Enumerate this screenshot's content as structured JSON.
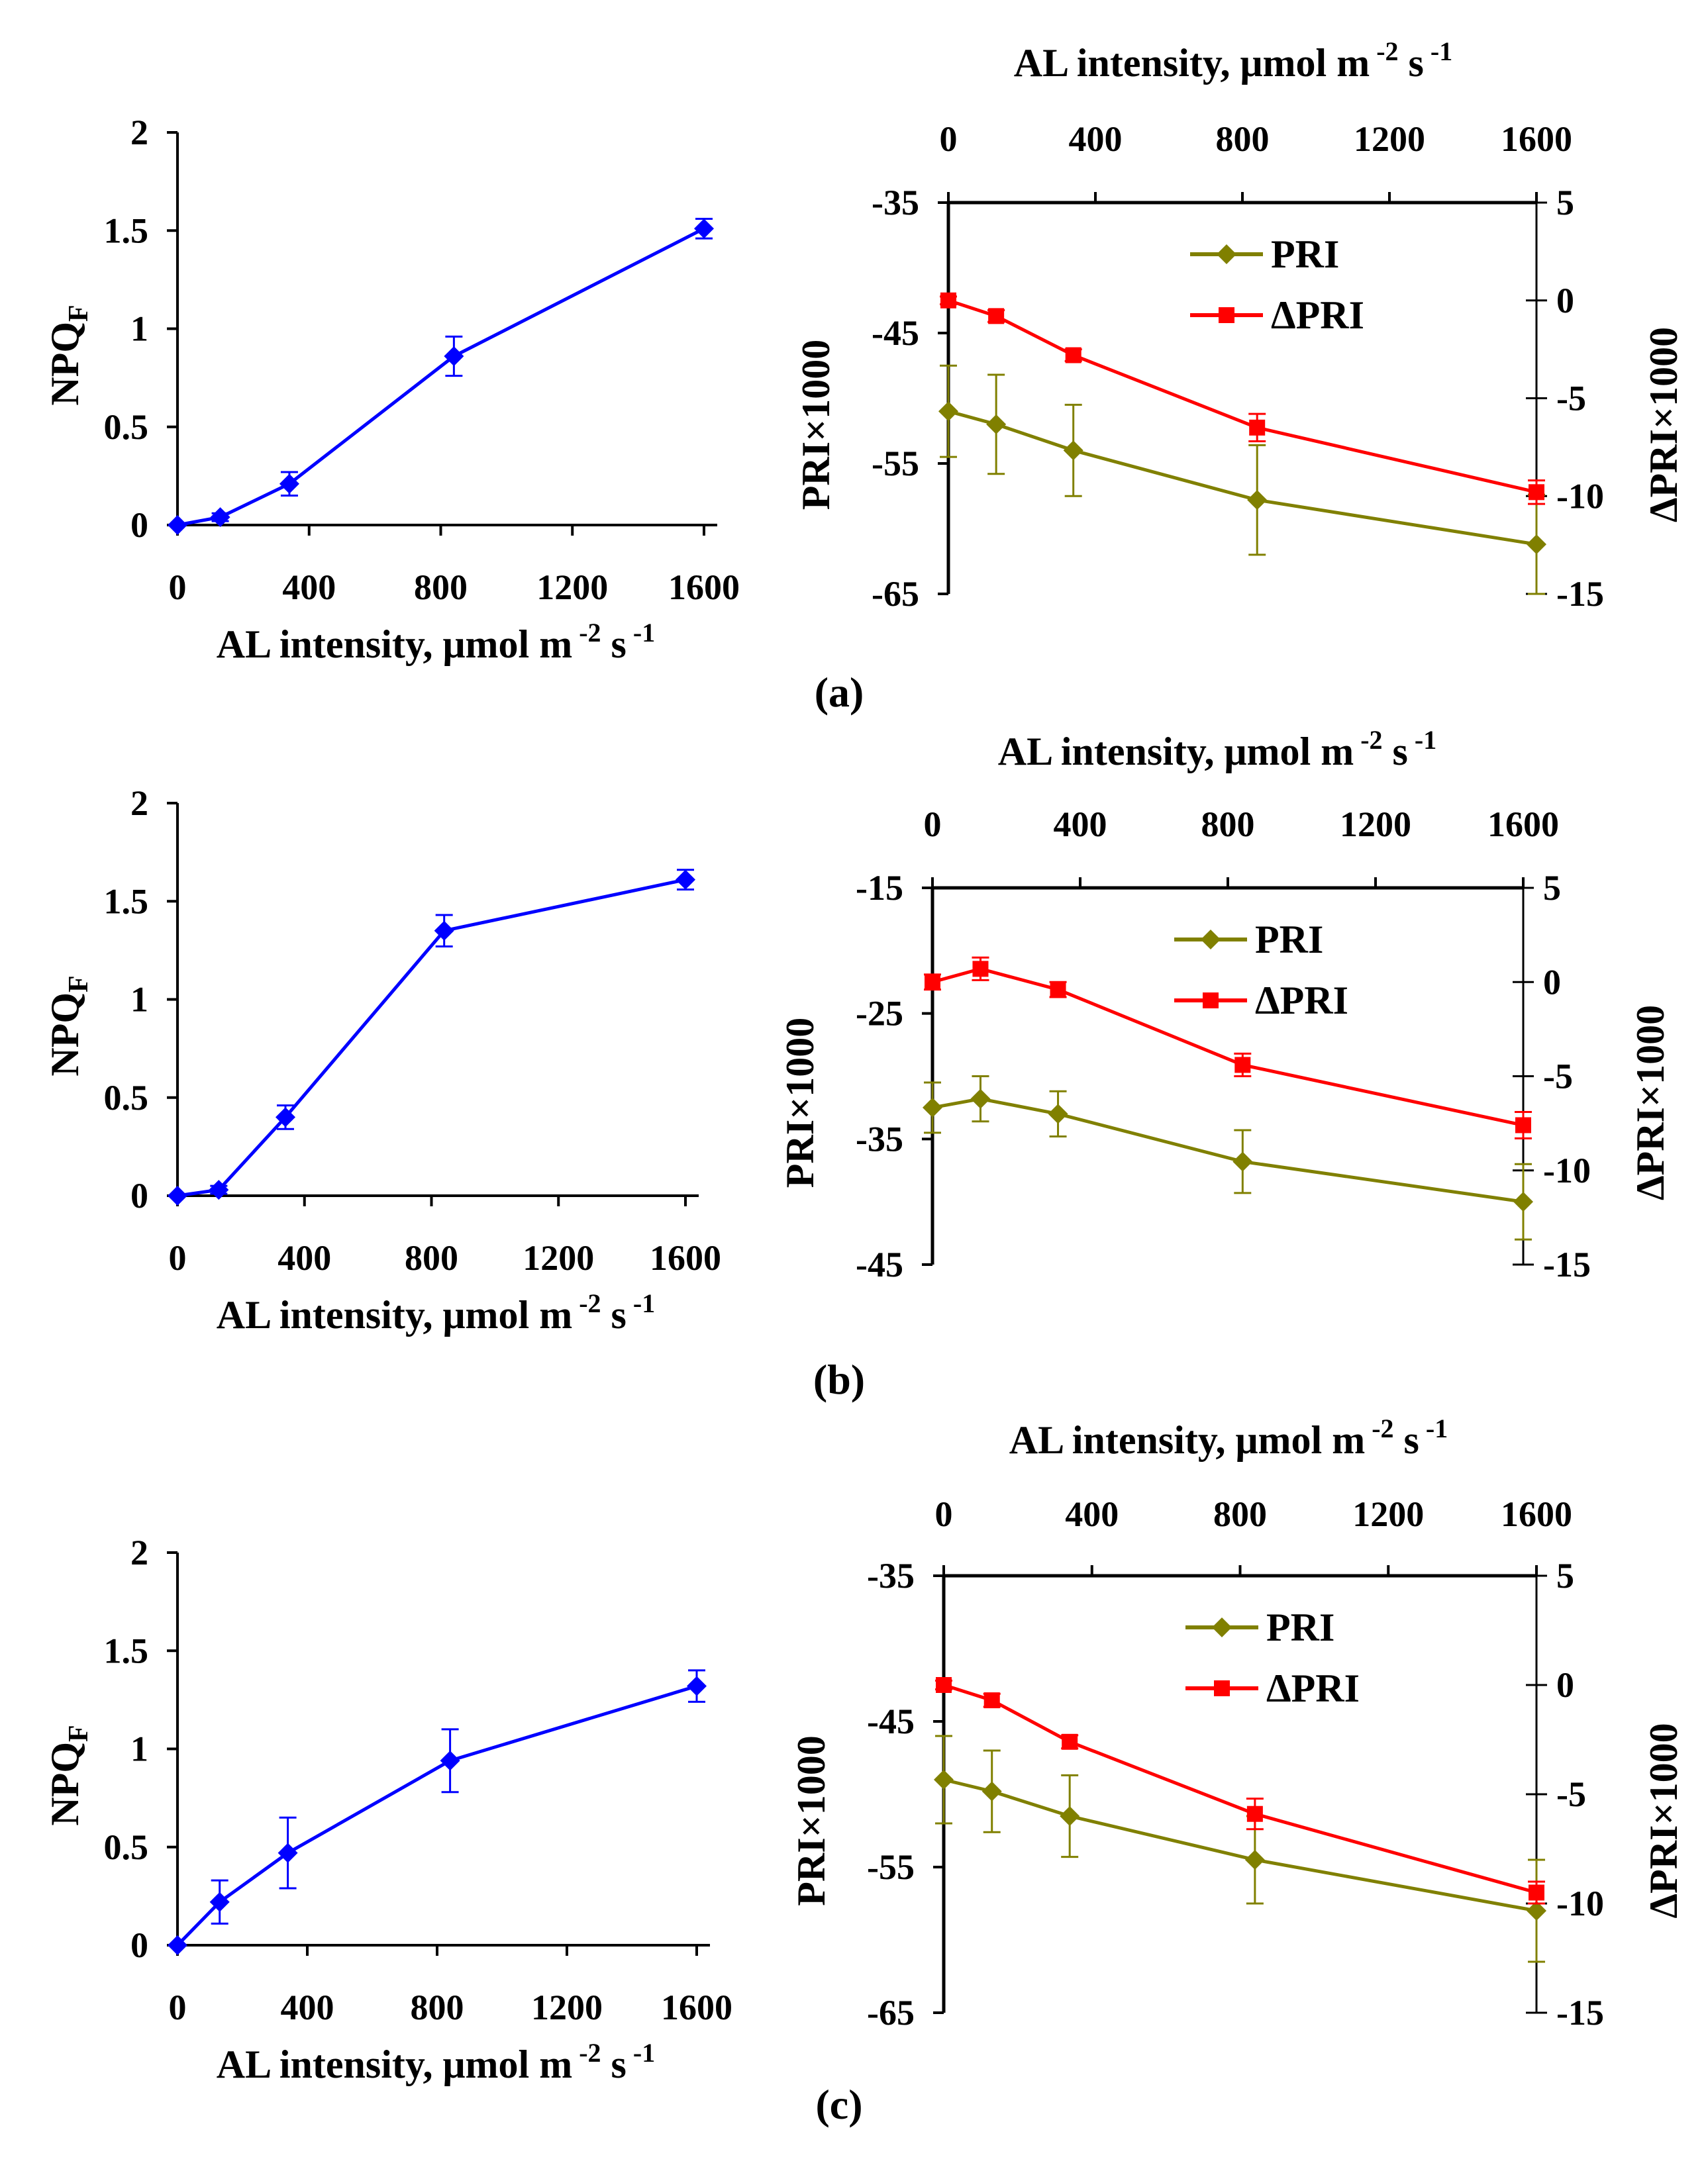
{
  "chart_data": [
    {
      "type": "line",
      "panel": "(a) left",
      "x_label": "AL intensity, μmol m⁻² s⁻¹",
      "y_label_main": "NPQ",
      "y_label_sub": "F",
      "x_ticks": [
        "0",
        "400",
        "800",
        "1200",
        "1600"
      ],
      "y_ticks": [
        "0",
        "0.5",
        "1",
        "1.5",
        "2"
      ],
      "xlim": [
        0,
        1600
      ],
      "ylim": [
        0,
        2
      ],
      "series": [
        {
          "color": "#0000ff",
          "marker": "diamond",
          "x": [
            0,
            130,
            340,
            840,
            1600
          ],
          "y": [
            0,
            0.04,
            0.21,
            0.86,
            1.51
          ],
          "err": [
            0,
            0.02,
            0.06,
            0.1,
            0.05
          ]
        }
      ]
    },
    {
      "type": "line",
      "panel": "(a) right",
      "panel_label": "(a)",
      "x_label": "AL intensity, μmol m⁻² s⁻¹",
      "y_label_left": "PRI×1000",
      "y_label_right": "ΔPRI×1000",
      "x_ticks": [
        "0",
        "400",
        "800",
        "1200",
        "1600"
      ],
      "y_ticks_left": [
        "-35",
        "-45",
        "-55",
        "-65"
      ],
      "y_ticks_right": [
        "5",
        "0",
        "-5",
        "-10",
        "-15"
      ],
      "xlim": [
        0,
        1600
      ],
      "ylim_left": [
        -65,
        -35
      ],
      "ylim_right": [
        -15,
        5
      ],
      "legend": [
        "PRI",
        "ΔPRI"
      ],
      "series": [
        {
          "name": "PRI",
          "axis": "left",
          "color": "#808000",
          "marker": "diamond",
          "x": [
            0,
            130,
            340,
            840,
            1600
          ],
          "y": [
            -51.0,
            -52.0,
            -54.0,
            -57.8,
            -61.2
          ],
          "err": [
            3.5,
            3.8,
            3.5,
            4.2,
            3.8
          ]
        },
        {
          "name": "ΔPRI",
          "axis": "right",
          "color": "#ff0000",
          "marker": "square",
          "x": [
            0,
            130,
            340,
            840,
            1600
          ],
          "y": [
            0,
            -0.8,
            -2.8,
            -6.5,
            -9.8
          ],
          "err": [
            0.2,
            0.3,
            0.3,
            0.7,
            0.6
          ]
        }
      ]
    },
    {
      "type": "line",
      "panel": "(b) left",
      "x_label": "AL intensity, μmol m⁻² s⁻¹",
      "y_label_main": "NPQ",
      "y_label_sub": "F",
      "x_ticks": [
        "0",
        "400",
        "800",
        "1200",
        "1600"
      ],
      "y_ticks": [
        "0",
        "0.5",
        "1",
        "1.5",
        "2"
      ],
      "xlim": [
        0,
        1600
      ],
      "ylim": [
        0,
        2
      ],
      "series": [
        {
          "color": "#0000ff",
          "marker": "diamond",
          "x": [
            0,
            130,
            340,
            840,
            1600
          ],
          "y": [
            0,
            0.03,
            0.4,
            1.35,
            1.61
          ],
          "err": [
            0,
            0.02,
            0.06,
            0.08,
            0.05
          ]
        }
      ]
    },
    {
      "type": "line",
      "panel": "(b) right",
      "panel_label": "(b)",
      "x_label": "AL intensity, μmol m⁻² s⁻¹",
      "y_label_left": "PRI×1000",
      "y_label_right": "ΔPRI×1000",
      "x_ticks": [
        "0",
        "400",
        "800",
        "1200",
        "1600"
      ],
      "y_ticks_left": [
        "-15",
        "-25",
        "-35",
        "-45"
      ],
      "y_ticks_right": [
        "5",
        "0",
        "-5",
        "-10",
        "-15"
      ],
      "xlim": [
        0,
        1600
      ],
      "ylim_left": [
        -45,
        -15
      ],
      "ylim_right": [
        -15,
        5
      ],
      "legend": [
        "PRI",
        "ΔPRI"
      ],
      "series": [
        {
          "name": "PRI",
          "axis": "left",
          "color": "#808000",
          "marker": "diamond",
          "x": [
            0,
            130,
            340,
            840,
            1600
          ],
          "y": [
            -32.5,
            -31.8,
            -33.0,
            -36.8,
            -40.0
          ],
          "err": [
            2.0,
            1.8,
            1.8,
            2.5,
            3.0
          ]
        },
        {
          "name": "ΔPRI",
          "axis": "right",
          "color": "#ff0000",
          "marker": "square",
          "x": [
            0,
            130,
            340,
            840,
            1600
          ],
          "y": [
            0,
            0.7,
            -0.4,
            -4.4,
            -7.6
          ],
          "err": [
            0.4,
            0.6,
            0.4,
            0.6,
            0.7
          ]
        }
      ]
    },
    {
      "type": "line",
      "panel": "(c) left",
      "x_label": "AL intensity, μmol m⁻² s⁻¹",
      "y_label_main": "NPQ",
      "y_label_sub": "F",
      "x_ticks": [
        "0",
        "400",
        "800",
        "1200",
        "1600"
      ],
      "y_ticks": [
        "0",
        "0.5",
        "1",
        "1.5",
        "2"
      ],
      "xlim": [
        0,
        1600
      ],
      "ylim": [
        0,
        2
      ],
      "series": [
        {
          "color": "#0000ff",
          "marker": "diamond",
          "x": [
            0,
            130,
            340,
            840,
            1600
          ],
          "y": [
            0,
            0.22,
            0.47,
            0.94,
            1.32
          ],
          "err": [
            0,
            0.11,
            0.18,
            0.16,
            0.08
          ]
        }
      ]
    },
    {
      "type": "line",
      "panel": "(c) right",
      "panel_label": "(c)",
      "x_label": "AL intensity, μmol m⁻² s⁻¹",
      "y_label_left": "PRI×1000",
      "y_label_right": "ΔPRI×1000",
      "x_ticks": [
        "0",
        "400",
        "800",
        "1200",
        "1600"
      ],
      "y_ticks_left": [
        "-35",
        "-45",
        "-55",
        "-65"
      ],
      "y_ticks_right": [
        "5",
        "0",
        "-5",
        "-10",
        "-15"
      ],
      "xlim": [
        0,
        1600
      ],
      "ylim_left": [
        -65,
        -35
      ],
      "ylim_right": [
        -15,
        5
      ],
      "legend": [
        "PRI",
        "ΔPRI"
      ],
      "series": [
        {
          "name": "PRI",
          "axis": "left",
          "color": "#808000",
          "marker": "diamond",
          "x": [
            0,
            130,
            340,
            840,
            1600
          ],
          "y": [
            -49.0,
            -49.8,
            -51.5,
            -54.5,
            -58.0
          ],
          "err": [
            3.0,
            2.8,
            2.8,
            3.0,
            3.5
          ]
        },
        {
          "name": "ΔPRI",
          "axis": "right",
          "color": "#ff0000",
          "marker": "square",
          "x": [
            0,
            130,
            340,
            840,
            1600
          ],
          "y": [
            0,
            -0.7,
            -2.6,
            -5.9,
            -9.5
          ],
          "err": [
            0.2,
            0.3,
            0.3,
            0.7,
            0.5
          ]
        }
      ]
    }
  ]
}
